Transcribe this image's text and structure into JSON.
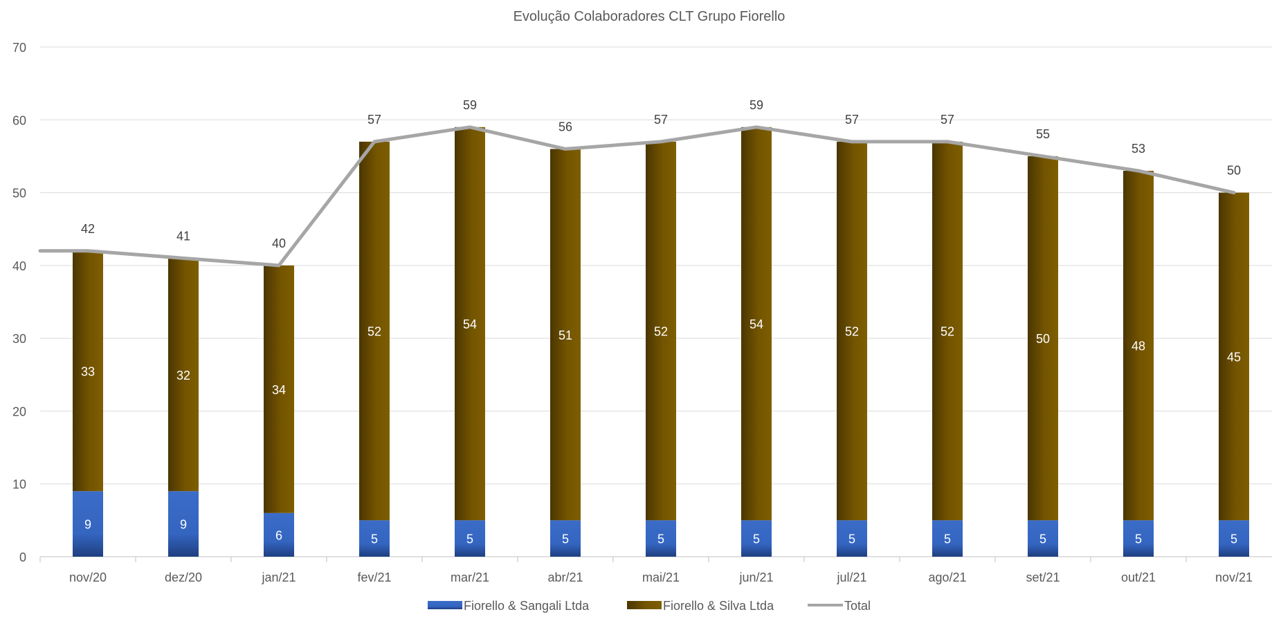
{
  "chart_data": {
    "type": "bar",
    "stacked": true,
    "title": "Evolução Colaboradores CLT Grupo Fiorello",
    "xlabel": "",
    "ylabel": "",
    "categories": [
      "nov/20",
      "dez/20",
      "jan/21",
      "fev/21",
      "mar/21",
      "abr/21",
      "mai/21",
      "jun/21",
      "jul/21",
      "ago/21",
      "set/21",
      "out/21",
      "nov/21"
    ],
    "series": [
      {
        "name": "Fiorello & Sangali Ltda",
        "kind": "bar",
        "color": "#3A6CC8",
        "values": [
          9,
          9,
          6,
          5,
          5,
          5,
          5,
          5,
          5,
          5,
          5,
          5,
          5
        ]
      },
      {
        "name": "Fiorello & Silva Ltda",
        "kind": "bar",
        "color": "#7A5A00",
        "values": [
          33,
          32,
          34,
          52,
          54,
          51,
          52,
          54,
          52,
          52,
          50,
          48,
          45
        ]
      },
      {
        "name": "Total",
        "kind": "line",
        "color": "#A6A6A6",
        "values": [
          42,
          41,
          40,
          57,
          59,
          56,
          57,
          59,
          57,
          57,
          55,
          53,
          50
        ]
      }
    ],
    "ylim": [
      0,
      70
    ],
    "yticks": [
      0,
      10,
      20,
      30,
      40,
      50,
      60,
      70
    ],
    "grid": true,
    "legend": "bottom"
  }
}
